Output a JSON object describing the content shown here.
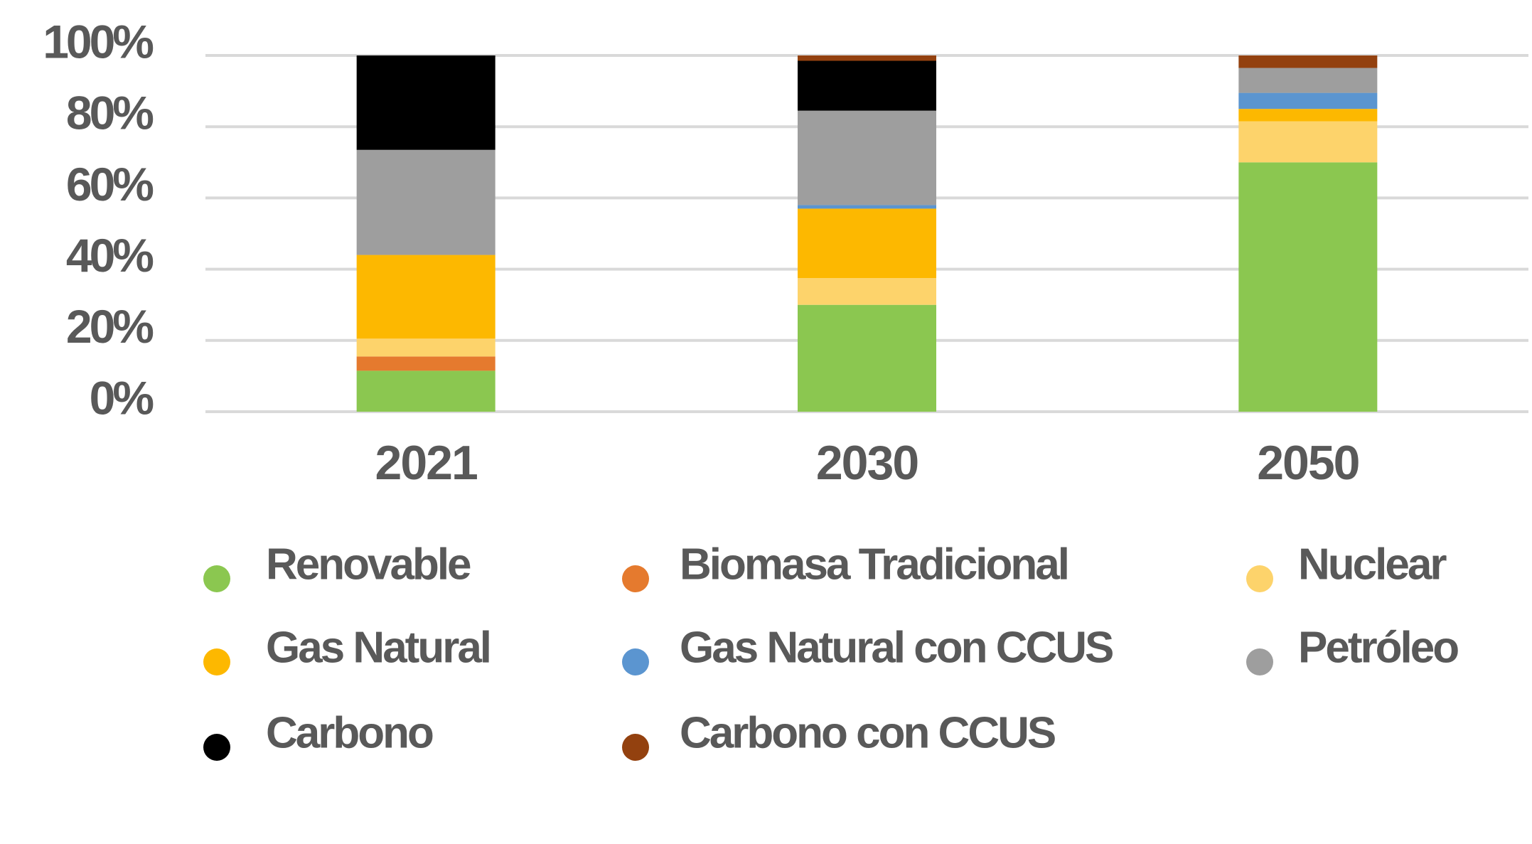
{
  "chart_data": {
    "type": "stacked_bar",
    "categories": [
      "2021",
      "2030",
      "2050"
    ],
    "series": [
      {
        "name": "Renovable",
        "color": "#8bc750",
        "values": [
          11.5,
          30,
          70
        ]
      },
      {
        "name": "Biomasa Tradicional",
        "color": "#e57a2e",
        "values": [
          4,
          0,
          0
        ]
      },
      {
        "name": "Nuclear",
        "color": "#fdd36b",
        "values": [
          5,
          7.5,
          11.5
        ]
      },
      {
        "name": "Gas Natural",
        "color": "#fdb800",
        "values": [
          23.5,
          19.5,
          3.5
        ]
      },
      {
        "name": "Gas Natural con CCUS",
        "color": "#5b95d0",
        "values": [
          0,
          1,
          4.5
        ]
      },
      {
        "name": "Petróleo",
        "color": "#9e9e9e",
        "values": [
          29.5,
          26.5,
          7
        ]
      },
      {
        "name": "Carbono",
        "color": "#000000",
        "values": [
          26.5,
          14,
          0
        ]
      },
      {
        "name": "Carbono con CCUS",
        "color": "#93410f",
        "values": [
          0,
          1.5,
          3.5
        ]
      }
    ],
    "ylim": [
      0,
      100
    ],
    "yticks": [
      {
        "value": 0,
        "label": "0%"
      },
      {
        "value": 20,
        "label": "20%"
      },
      {
        "value": 40,
        "label": "40%"
      },
      {
        "value": 60,
        "label": "60%"
      },
      {
        "value": 80,
        "label": "80%"
      },
      {
        "value": 100,
        "label": "100%"
      }
    ],
    "grid": true,
    "legend": "bottom"
  }
}
